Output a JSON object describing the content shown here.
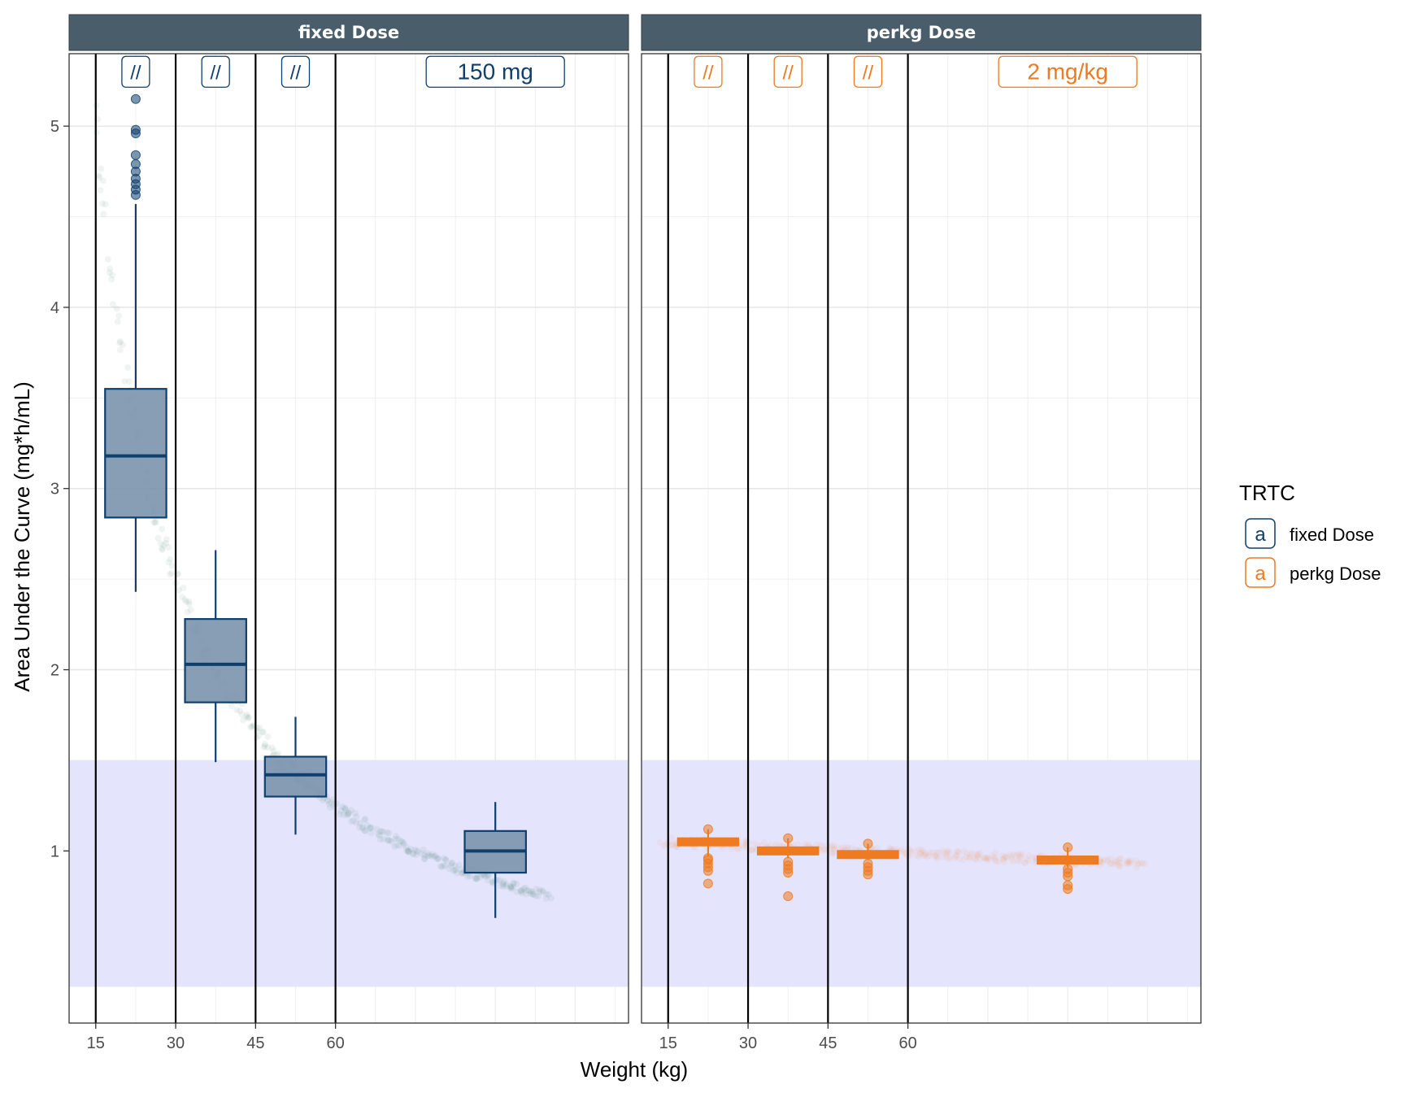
{
  "chart_data": {
    "type": "boxplot",
    "xlabel": "Weight (kg)",
    "ylabel": "Area Under the Curve (mg*h/mL)",
    "y_ticks": [
      1,
      2,
      3,
      4,
      5
    ],
    "ylim": [
      0.05,
      5.4
    ],
    "x_ticks": [
      15,
      30,
      45,
      60
    ],
    "xlim": [
      10,
      115
    ],
    "reference_band": {
      "ymin": 0.25,
      "ymax": 1.5,
      "color": "#e3e3fd"
    },
    "vertical_lines": [
      15,
      30,
      45,
      60
    ],
    "legend": {
      "title": "TRTC",
      "glyph": "a",
      "placement": "right",
      "entries": [
        {
          "name": "fixed Dose",
          "color": "#0f3f6d"
        },
        {
          "name": "perkg Dose",
          "color": "#ee7a21"
        }
      ]
    },
    "facets": [
      {
        "strip": "fixed Dose",
        "color": "#0f3f6d",
        "fill": "#7b93ad",
        "cloud_color": "#3f7a6c",
        "cloud": {
          "kind": "curve",
          "k": 75,
          "x_from": 12,
          "x_to": 100
        },
        "annotations": [
          {
            "x": 22.5,
            "y": 5.3,
            "text": "//"
          },
          {
            "x": 37.5,
            "y": 5.3,
            "text": "//"
          },
          {
            "x": 52.5,
            "y": 5.3,
            "text": "//"
          },
          {
            "x": 90,
            "y": 5.3,
            "text": "150 mg"
          }
        ],
        "boxes": [
          {
            "x": 22.5,
            "width": 11.5,
            "whisker_low": 2.43,
            "q1": 2.84,
            "median": 3.18,
            "q3": 3.55,
            "whisker_high": 4.57,
            "outliers": [
              4.62,
              4.65,
              4.68,
              4.71,
              4.75,
              4.79,
              4.84,
              4.96,
              4.98,
              5.15
            ]
          },
          {
            "x": 37.5,
            "width": 11.5,
            "whisker_low": 1.49,
            "q1": 1.82,
            "median": 2.03,
            "q3": 2.28,
            "whisker_high": 2.66,
            "outliers": []
          },
          {
            "x": 52.5,
            "width": 11.5,
            "whisker_low": 1.09,
            "q1": 1.3,
            "median": 1.42,
            "q3": 1.52,
            "whisker_high": 1.74,
            "outliers": []
          },
          {
            "x": 90,
            "width": 11.5,
            "whisker_low": 0.63,
            "q1": 0.88,
            "median": 1.0,
            "q3": 1.11,
            "whisker_high": 1.27,
            "outliers": []
          }
        ]
      },
      {
        "strip": "perkg Dose",
        "color": "#ee7a21",
        "fill": "#ee7a21",
        "cloud_color": "#f59a5a",
        "cloud": {
          "kind": "flat",
          "y_start": 1.05,
          "y_end": 0.93,
          "x_from": 14,
          "x_to": 104
        },
        "annotations": [
          {
            "x": 22.5,
            "y": 5.3,
            "text": "//"
          },
          {
            "x": 37.5,
            "y": 5.3,
            "text": "//"
          },
          {
            "x": 52.5,
            "y": 5.3,
            "text": "//"
          },
          {
            "x": 90,
            "y": 5.3,
            "text": "2 mg/kg"
          }
        ],
        "boxes": [
          {
            "x": 22.5,
            "width": 11.5,
            "whisker_low": 0.97,
            "q1": 1.03,
            "median": 1.05,
            "q3": 1.06,
            "whisker_high": 1.12,
            "outliers": [
              0.82,
              0.89,
              0.91,
              0.93,
              0.95,
              0.96,
              1.12
            ]
          },
          {
            "x": 37.5,
            "width": 11.5,
            "whisker_low": 0.96,
            "q1": 0.99,
            "median": 1.0,
            "q3": 1.01,
            "whisker_high": 1.07,
            "outliers": [
              0.75,
              0.88,
              0.9,
              0.92,
              0.94,
              1.07
            ]
          },
          {
            "x": 52.5,
            "width": 11.5,
            "whisker_low": 0.95,
            "q1": 0.97,
            "median": 0.98,
            "q3": 0.99,
            "whisker_high": 1.04,
            "outliers": [
              0.87,
              0.89,
              0.91,
              0.93,
              1.04
            ]
          },
          {
            "x": 90,
            "width": 11.5,
            "whisker_low": 0.91,
            "q1": 0.94,
            "median": 0.95,
            "q3": 0.96,
            "whisker_high": 1.02,
            "outliers": [
              0.79,
              0.81,
              0.86,
              0.88,
              0.9,
              1.02
            ]
          }
        ]
      }
    ]
  }
}
